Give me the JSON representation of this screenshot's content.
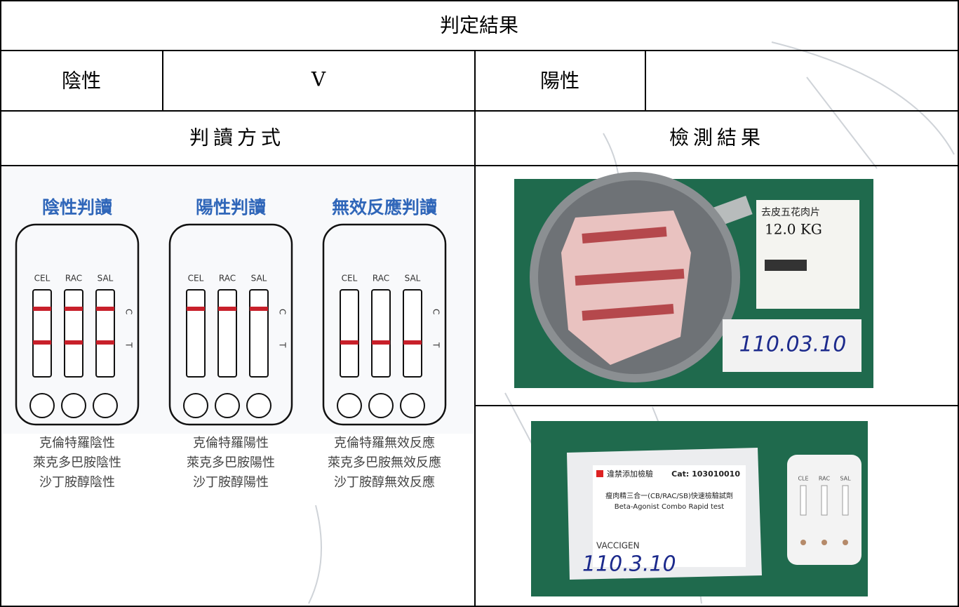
{
  "table": {
    "title": "判定結果",
    "result_row": {
      "negative_label": "陰性",
      "negative_mark": "V",
      "positive_label": "陽性"
    },
    "headers": [
      "判讀方式",
      "檢測結果"
    ]
  },
  "guide": {
    "strip_labels": [
      "CEL",
      "RAC",
      "SAL"
    ],
    "line_labels": [
      "C",
      "T"
    ],
    "panels": [
      {
        "title": "陰性判讀",
        "descriptions": [
          "克倫特羅陰性",
          "萊克多巴胺陰性",
          "沙丁胺醇陰性"
        ]
      },
      {
        "title": "陽性判讀",
        "descriptions": [
          "克倫特羅陽性",
          "萊克多巴胺陽性",
          "沙丁胺醇陽性"
        ]
      },
      {
        "title": "無效反應判讀",
        "descriptions": [
          "克倫特羅無效反應",
          "萊克多巴胺無效反應",
          "沙丁胺醇無效反應"
        ]
      }
    ]
  },
  "photos": {
    "meat": {
      "product": "去皮五花肉片",
      "weight": "12.0 KG",
      "date": "110.03.10"
    },
    "kit": {
      "label": "違禁添加檢驗",
      "catalog": "Cat: 103010010",
      "name": "瘦肉精三合一(CB/RAC/SB)快速檢驗試劑",
      "name_en": "Beta-Agonist Combo Rapid test",
      "brand": "VACCIGEN",
      "date": "110.3.10",
      "strip_labels": [
        "CLE",
        "RAC",
        "SAL"
      ]
    }
  }
}
